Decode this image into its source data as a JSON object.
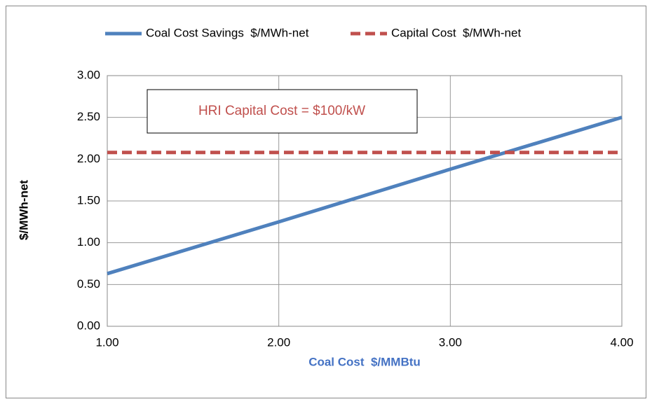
{
  "chart_data": {
    "type": "line",
    "x": [
      1,
      2,
      3,
      4
    ],
    "series": [
      {
        "name": "Coal Cost Savings  $/MWh-net",
        "color": "#4f81bd",
        "dashed": false,
        "values": [
          0.63,
          1.25,
          1.88,
          2.5
        ]
      },
      {
        "name": "Capital Cost  $/MWh-net",
        "color": "#c0504d",
        "dashed": true,
        "values": [
          2.08,
          2.08,
          2.08,
          2.08
        ]
      }
    ],
    "xlabel": "Coal Cost  $/MMBtu",
    "ylabel": "$/MWh-net",
    "annotation": "HRI Capital Cost = $100/kW",
    "xlim": [
      1,
      4
    ],
    "xticks": [
      {
        "value": 1,
        "label": "1.00"
      },
      {
        "value": 2,
        "label": "2.00"
      },
      {
        "value": 3,
        "label": "3.00"
      },
      {
        "value": 4,
        "label": "4.00"
      }
    ],
    "ylim": [
      0,
      3
    ],
    "yticks": [
      {
        "value": 0,
        "label": "0.00"
      },
      {
        "value": 0.5,
        "label": "0.50"
      },
      {
        "value": 1,
        "label": "1.00"
      },
      {
        "value": 1.5,
        "label": "1.50"
      },
      {
        "value": 2,
        "label": "2.00"
      },
      {
        "value": 2.5,
        "label": "2.50"
      },
      {
        "value": 3,
        "label": "3.00"
      }
    ],
    "grid": true,
    "legend": "top"
  }
}
